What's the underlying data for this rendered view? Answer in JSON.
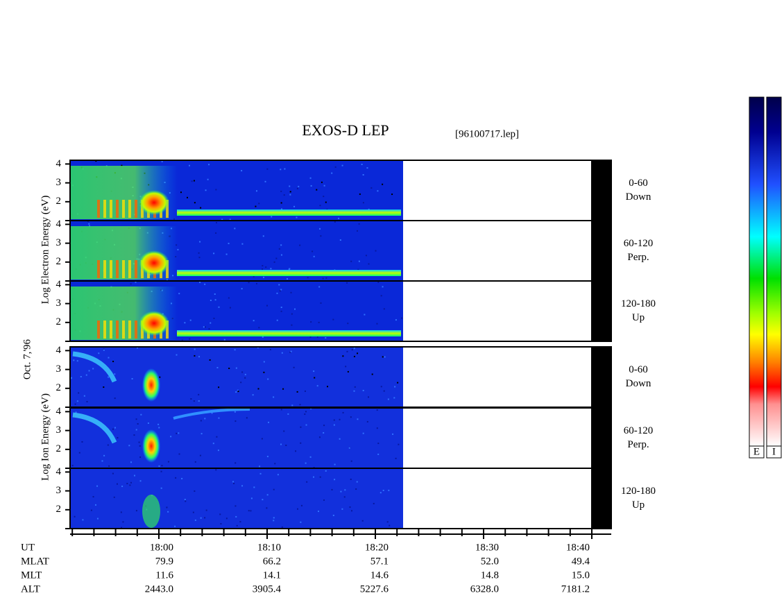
{
  "header": {
    "title": "EXOS-D LEP",
    "file": "[96100717.lep]"
  },
  "date": "Oct. 7,'96",
  "electron": {
    "axis_label": "Log Electron Energy (eV)",
    "panels": [
      {
        "yticks": [
          2,
          3,
          4
        ],
        "label": [
          "0-60",
          "Down"
        ]
      },
      {
        "yticks": [
          2,
          3,
          4
        ],
        "label": [
          "60-120",
          "Perp."
        ]
      },
      {
        "yticks": [
          2,
          3,
          4
        ],
        "label": [
          "120-180",
          "Up"
        ]
      }
    ]
  },
  "ion": {
    "axis_label": "Log Ion Energy (eV)",
    "panels": [
      {
        "yticks": [
          2,
          3,
          4
        ],
        "label": [
          "0-60",
          "Down"
        ]
      },
      {
        "yticks": [
          2,
          3,
          4
        ],
        "label": [
          "60-120",
          "Perp."
        ]
      },
      {
        "yticks": [
          2,
          3,
          4
        ],
        "label": [
          "120-180",
          "Up"
        ]
      }
    ]
  },
  "footer": {
    "rows": [
      [
        "UT",
        "18:00",
        "18:10",
        "18:20",
        "18:30",
        "18:40"
      ],
      [
        "MLAT",
        "79.9",
        "66.2",
        "57.1",
        "52.0",
        "49.4"
      ],
      [
        "MLT",
        "11.6",
        "14.1",
        "14.6",
        "14.8",
        "15.0"
      ],
      [
        "ALT",
        "2443.0",
        "3905.4",
        "5227.6",
        "6328.0",
        "7181.2"
      ]
    ]
  },
  "colorbar": {
    "labels": [
      "E",
      "I"
    ]
  }
}
